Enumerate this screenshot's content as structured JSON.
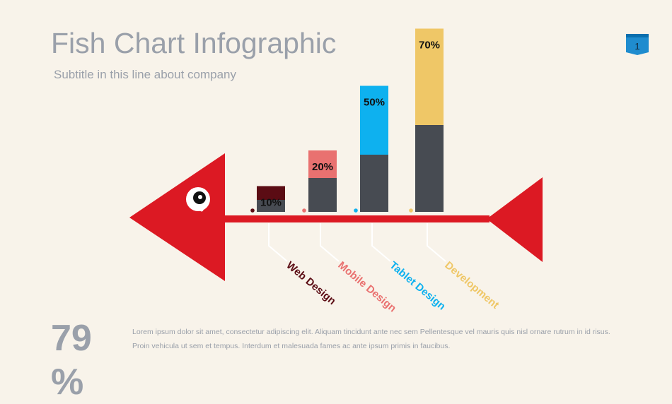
{
  "header": {
    "title": "Fish Chart Infographic",
    "subtitle": "Subtitle in this line about company",
    "page_number": "1"
  },
  "footer": {
    "big_value": "79 %",
    "body_text": "Lorem ipsum dolor sit amet, consectetur adipiscing elit. Aliquam tincidunt ante nec sem Pellentesque vel mauris quis nisl ornare rutrum in id risus. Proin vehicula ut sem et tempus. Interdum et malesuada fames ac ante ipsum primis in faucibus."
  },
  "colors": {
    "fish": "#dc1923",
    "bar_base": "#474b52",
    "badge": "#1f8ccf"
  },
  "chart_data": {
    "type": "bar",
    "title": "",
    "categories": [
      "Web Design",
      "Mobile Design",
      "Tablet Design",
      "Development"
    ],
    "values": [
      10,
      20,
      50,
      70
    ],
    "labels": [
      "10%",
      "20%",
      "50%",
      "70%"
    ],
    "colors": [
      "#5b0c14",
      "#e97170",
      "#0eb1ef",
      "#efc767"
    ],
    "ylim": [
      0,
      100
    ],
    "grid": false,
    "legend": "none"
  }
}
